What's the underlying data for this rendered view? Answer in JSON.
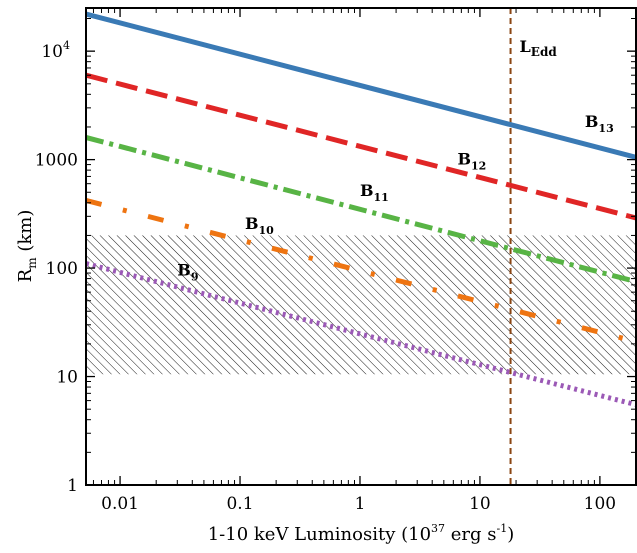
{
  "chart_data": {
    "type": "line",
    "title": "",
    "xlabel": {
      "text": "1-10 keV Luminosity (10",
      "sup": "37",
      "unit": " erg s",
      "unit_sup": "-1",
      "close": ")"
    },
    "ylabel": {
      "main": "R",
      "sub": "m",
      "rest": " (km)"
    },
    "x_scale": "log",
    "y_scale": "log",
    "xlim": [
      0.0052,
      200
    ],
    "ylim": [
      1,
      25000
    ],
    "x_ticks": [
      {
        "value": 0.01,
        "label": "0.01"
      },
      {
        "value": 0.1,
        "label": "0.1"
      },
      {
        "value": 1,
        "label": "1"
      },
      {
        "value": 10,
        "label": "10"
      },
      {
        "value": 100,
        "label": "100"
      }
    ],
    "y_ticks": [
      {
        "value": 1,
        "label": "1"
      },
      {
        "value": 10,
        "label": "10"
      },
      {
        "value": 100,
        "label": "100"
      },
      {
        "value": 1000,
        "label": "1000"
      },
      {
        "value": 10000,
        "label": "10",
        "sup": "4"
      }
    ],
    "shaded_band": {
      "ymin": 10.5,
      "ymax": 200,
      "hatch": "diagonal",
      "color": "#000000"
    },
    "vertical_line": {
      "x": 18,
      "label": "L",
      "sub": "Edd",
      "color": "#8B4513",
      "style": "dashed"
    },
    "series": [
      {
        "label_main": "B",
        "label_sub": "13",
        "x": [
          0.0052,
          200
        ],
        "y": [
          22000,
          1050
        ],
        "color": "#3a7ab5",
        "style": "solid",
        "label_x": 75,
        "label_y": 2000
      },
      {
        "label_main": "B",
        "label_sub": "12",
        "x": [
          0.0052,
          200
        ],
        "y": [
          6000,
          290
        ],
        "color": "#e02626",
        "style": "dashed",
        "label_x": 6.5,
        "label_y": 900
      },
      {
        "label_main": "B",
        "label_sub": "11",
        "x": [
          0.0052,
          200
        ],
        "y": [
          1600,
          75
        ],
        "color": "#58b445",
        "style": "dashdot",
        "label_x": 1.0,
        "label_y": 460
      },
      {
        "label_main": "B",
        "label_sub": "10",
        "x": [
          0.0052,
          200
        ],
        "y": [
          420,
          21
        ],
        "color": "#ee7411",
        "style": "dashdotsparse",
        "label_x": 0.11,
        "label_y": 230
      },
      {
        "label_main": "B",
        "label_sub": "9",
        "x": [
          0.0052,
          200
        ],
        "y": [
          110,
          5.5
        ],
        "color": "#9b59b6",
        "style": "dotted",
        "label_x": 0.03,
        "label_y": 85
      }
    ],
    "grid": false,
    "legend": "none"
  }
}
